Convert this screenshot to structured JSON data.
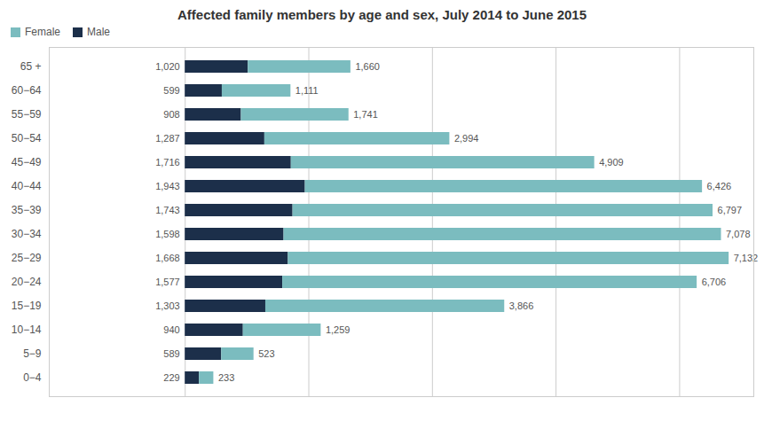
{
  "chart_data": {
    "type": "bar",
    "orientation": "horizontal",
    "stacked": true,
    "title": "Affected family members by age and sex, July 2014 to June 2015",
    "categories": [
      "65 +",
      "60−64",
      "55−59",
      "50−54",
      "45−49",
      "40−44",
      "35−39",
      "30−34",
      "25−29",
      "20−24",
      "15−19",
      "10−14",
      "5−9",
      "0−4"
    ],
    "series": [
      {
        "name": "Male",
        "color": "#1c2f4a",
        "values": [
          1020,
          599,
          908,
          1287,
          1716,
          1943,
          1743,
          1598,
          1668,
          1577,
          1303,
          940,
          589,
          229
        ],
        "value_labels": [
          "1,020",
          "599",
          "908",
          "1,287",
          "1,716",
          "1,943",
          "1,743",
          "1,598",
          "1,668",
          "1,577",
          "1,303",
          "940",
          "589",
          "229"
        ]
      },
      {
        "name": "Female",
        "color": "#7bbcbf",
        "values": [
          1660,
          1111,
          1741,
          2994,
          4909,
          6426,
          6797,
          7078,
          7132,
          6706,
          3866,
          1259,
          523,
          233
        ],
        "value_labels": [
          "1,660",
          "1,111",
          "1,741",
          "2,994",
          "4,909",
          "6,426",
          "6,797",
          "7,078",
          "7,132",
          "6,706",
          "3,866",
          "1,259",
          "523",
          "233"
        ]
      }
    ],
    "xlim": [
      -2200,
      9200
    ],
    "xticks": [
      0,
      2000,
      4000,
      6000,
      8000
    ],
    "grid": true,
    "legend": "upper left",
    "data_labels": true,
    "tick_labels": "y"
  }
}
